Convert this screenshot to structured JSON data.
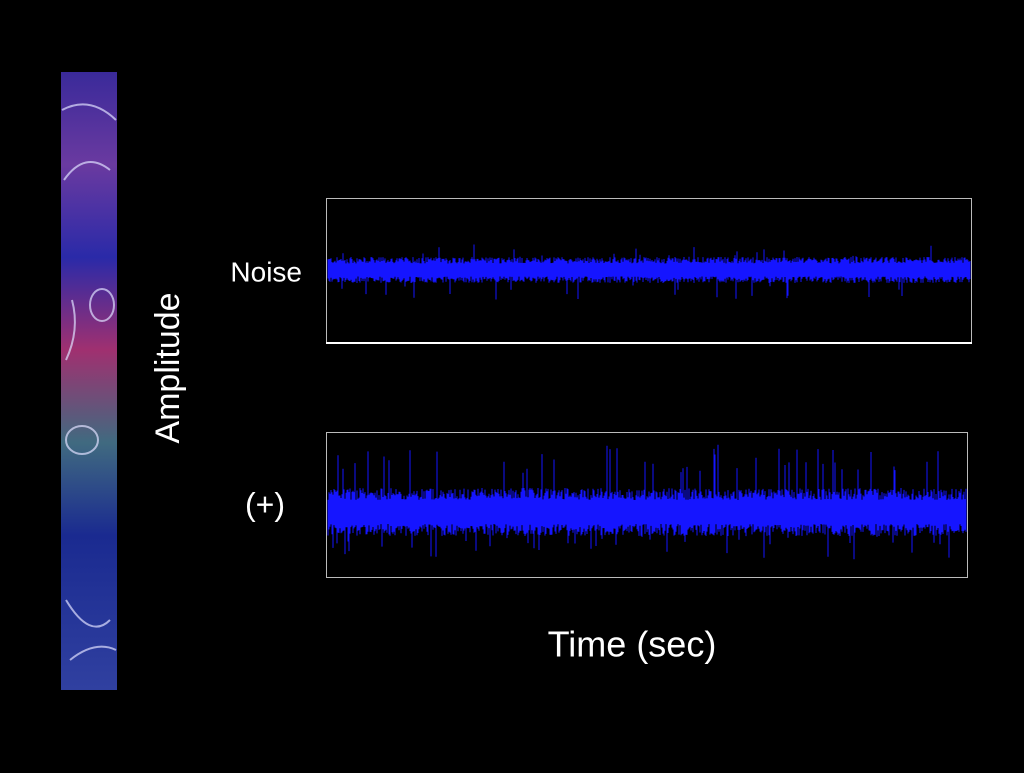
{
  "labels": {
    "top_trace": "Noise",
    "bottom_trace": "(+)",
    "y_axis": "Amplitude",
    "x_axis": "Time (sec)"
  }
}
